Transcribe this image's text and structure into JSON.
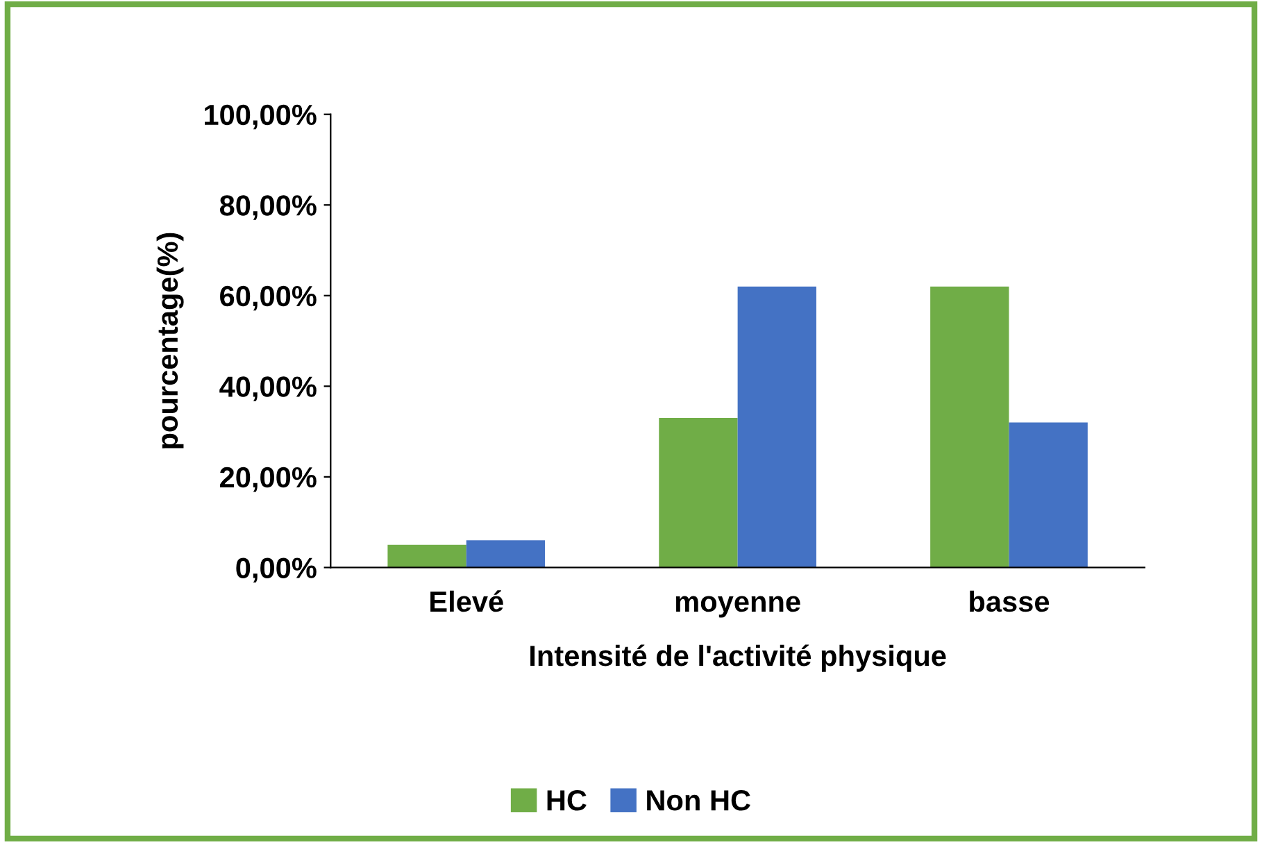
{
  "chart_data": {
    "type": "bar",
    "xlabel": "Intensité de l'activité physique",
    "ylabel": "pourcentage(%)",
    "categories": [
      "Elevé",
      "moyenne",
      "basse"
    ],
    "series": [
      {
        "name": "HC",
        "color": "#70ad47",
        "values": [
          5,
          33,
          62
        ]
      },
      {
        "name": "Non HC",
        "color": "#4472c4",
        "values": [
          6,
          62,
          32
        ]
      }
    ],
    "ylim": [
      0,
      100
    ],
    "yticks": [
      {
        "value": 0,
        "label": "0,00%"
      },
      {
        "value": 20,
        "label": "20,00%"
      },
      {
        "value": 40,
        "label": "40,00%"
      },
      {
        "value": 60,
        "label": "60,00%"
      },
      {
        "value": 80,
        "label": "80,00%"
      },
      {
        "value": 100,
        "label": "100,00%"
      }
    ],
    "grid": false,
    "legend": "bottom"
  }
}
